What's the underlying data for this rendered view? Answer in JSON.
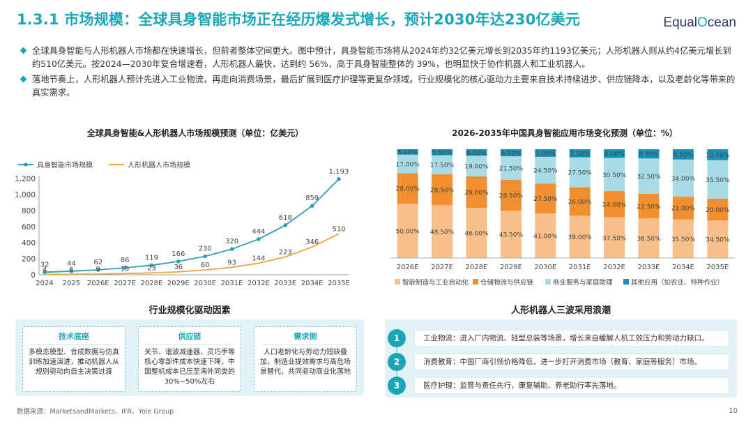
{
  "header": {
    "title": "1.3.1 市场规模：全球具身智能市场正在经历爆发式增长，预计2030年达230亿美元",
    "logo_pre": "Equal",
    "logo_o": "O",
    "logo_post": "cean"
  },
  "bullets": [
    "全球具身智能与人形机器人市场都在快速增长，但前者整体空间更大。图中预计，具身智能市场将从2024年约32亿美元增长到2035年约1193亿美元；人形机器人则从约4亿美元增长到约510亿美元。按2024—2030年复合增速看，人形机器人最快，达到约 56%，高于具身智能整体的 39%，也明显快于协作机器人和工业机器人。",
    "落地节奏上，人形机器人预计先进入工业物流，再走向消费场景，最后扩展到医疗护理等更复杂领域。行业规模化的核心驱动力主要来自技术持续进步、供应链降本，以及老龄化等带来的真实需求。"
  ],
  "chart_data": [
    {
      "type": "line",
      "title": "全球具身智能&人形机器人市场规模预测（单位：亿美元）",
      "x": [
        "2024",
        "2025",
        "2026E",
        "2027E",
        "2028E",
        "2029E",
        "2030E",
        "2031E",
        "2032E",
        "2033E",
        "2034E",
        "2035E"
      ],
      "series": [
        {
          "name": "具身智能市场规模",
          "color": "#2a9fb6",
          "values": [
            32,
            44,
            62,
            86,
            119,
            166,
            230,
            320,
            444,
            618,
            859,
            1193
          ]
        },
        {
          "name": "人形机器人市场规模",
          "color": "#f0a23a",
          "values": [
            4,
            6,
            9,
            15,
            23,
            36,
            60,
            93,
            144,
            223,
            346,
            510
          ]
        }
      ],
      "yticks": [
        "0",
        "200",
        "400",
        "600",
        "800",
        "1,000",
        "1,200"
      ],
      "ylim": [
        0,
        1200
      ],
      "legend": "top-left"
    },
    {
      "type": "bar",
      "stacked": true,
      "title": "2026-2035年中国具身智能应用市场变化预测（单位：%）",
      "categories": [
        "2026E",
        "2027E",
        "2028E",
        "2029E",
        "2030E",
        "2031E",
        "2032E",
        "2033E",
        "2034E",
        "2035E"
      ],
      "series": [
        {
          "name": "智能制造与工业自动化",
          "color": "#f7c08b",
          "values": [
            50.0,
            48.5,
            46.0,
            43.5,
            41.0,
            39.0,
            37.5,
            36.5,
            35.5,
            34.5
          ],
          "labels": [
            "50.00%",
            "48.50%",
            "46.00%",
            "43.50%",
            "41.00%",
            "39.00%",
            "37.50%",
            "36.50%",
            "35.50%",
            "34.50%"
          ]
        },
        {
          "name": "仓储物流与供应链",
          "color": "#ef8f2f",
          "values": [
            28.0,
            28.5,
            29.0,
            28.5,
            27.5,
            26.0,
            24.0,
            22.5,
            21.0,
            20.0
          ],
          "labels": [
            "28.00%",
            "28.50%",
            "29.00%",
            "28.50%",
            "27.50%",
            "26.00%",
            "24.00%",
            "22.50%",
            "21.00%",
            "20.00%"
          ]
        },
        {
          "name": "商业服务与家庭助理",
          "color": "#a9dbe6",
          "values": [
            17.0,
            17.5,
            19.0,
            21.5,
            24.5,
            27.5,
            30.5,
            32.5,
            34.0,
            35.5
          ],
          "labels": [
            "17.00%",
            "17.50%",
            "19.00%",
            "21.50%",
            "24.50%",
            "27.50%",
            "30.50%",
            "32.50%",
            "34.00%",
            "35.50%"
          ]
        },
        {
          "name": "其他应用（如农业、特种作业）",
          "color": "#1c91b3",
          "values": [
            5.0,
            5.5,
            6.0,
            6.5,
            7.0,
            7.5,
            8.0,
            8.5,
            9.5,
            10.0
          ],
          "labels": [
            "5.00%",
            "5.50%",
            "6.00%",
            "6.50%",
            "7.00%",
            "7.50%",
            "8.00%",
            "8.50%",
            "9.50%",
            "10.00%"
          ]
        }
      ],
      "ylim": [
        0,
        100
      ],
      "legend": "bottom"
    }
  ],
  "drivers": {
    "title": "行业规模化驱动因素",
    "cards": [
      {
        "heading": "技术底座",
        "body": "多模态模型、合成数据与仿真训练加速演进，推动机器人从规则驱动向自主决策过渡"
      },
      {
        "heading": "供应链",
        "body": "关节、谐波减速器、灵巧手等核心零部件成本快速下降，中国整机成本已压至海外同类的30%~50%左右"
      },
      {
        "heading": "需求侧",
        "body": "人口老龄化与劳动力短缺叠加，制造业提效需求与高危场景替代，共同驱动商业化落地"
      }
    ]
  },
  "waves": {
    "title": "人形机器人三波采用浪潮",
    "items": [
      {
        "num": "1",
        "text": "工业物流：进入厂内物流、轻型总装等场景，增长来自缓解人机工效压力和劳动力缺口。"
      },
      {
        "num": "2",
        "text": "消费教育：中国厂商引领价格降低，进一步打开消费市场（教育、家庭等服务）市场。"
      },
      {
        "num": "3",
        "text": "医疗护理：监管与责任先行，康复辅助、养老助行率先落地。"
      }
    ]
  },
  "footer": {
    "source": "数据来源：MarketsandMarkets、IFR、Yole Group",
    "page": "10"
  }
}
